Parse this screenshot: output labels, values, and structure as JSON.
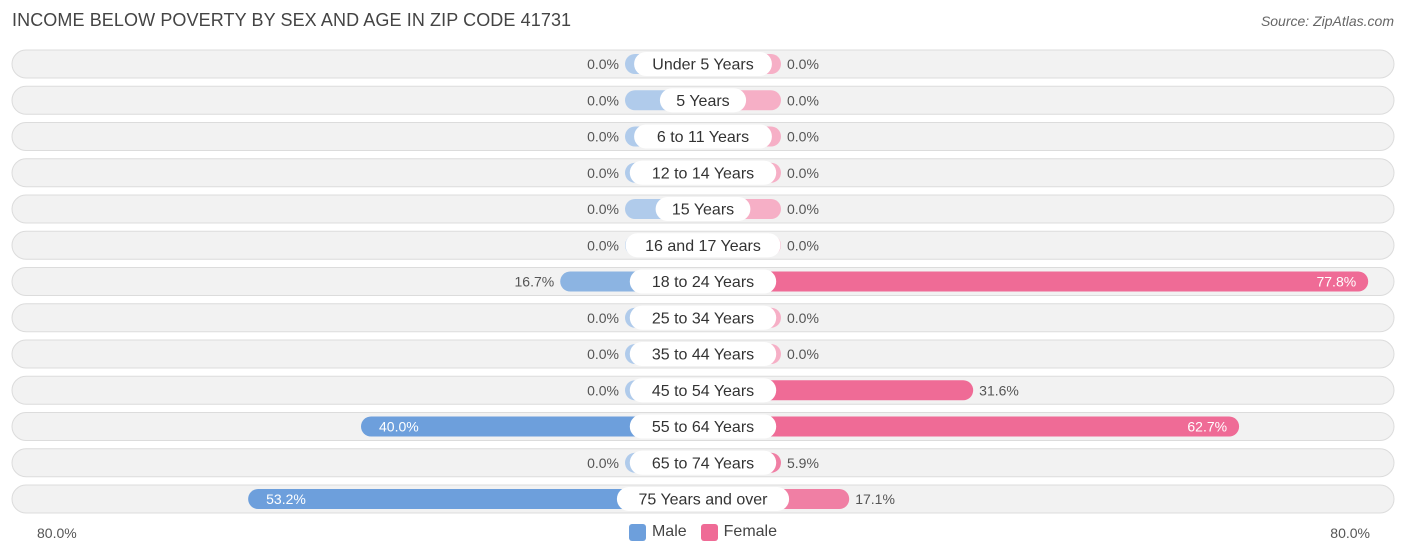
{
  "header": {
    "title": "INCOME BELOW POVERTY BY SEX AND AGE IN ZIP CODE 41731",
    "source": "Source: ZipAtlas.com"
  },
  "axis": {
    "left_label": "80.0%",
    "right_label": "80.0%"
  },
  "legend": {
    "male_label": "Male",
    "female_label": "Female"
  },
  "colors": {
    "male": "#8cb4e2",
    "male_strong": "#6d9fdc",
    "male_light": "#b0cbeb",
    "female": "#f07fa4",
    "female_strong": "#ef6b96",
    "female_light": "#f6afc6",
    "row_bg": "#f2f2f2",
    "row_border": "#dcdcdc"
  },
  "chart_data": {
    "type": "bar",
    "orientation": "horizontal-diverging",
    "xlim": [
      -80,
      80
    ],
    "categories": [
      "Under 5 Years",
      "5 Years",
      "6 to 11 Years",
      "12 to 14 Years",
      "15 Years",
      "16 and 17 Years",
      "18 to 24 Years",
      "25 to 34 Years",
      "35 to 44 Years",
      "45 to 54 Years",
      "55 to 64 Years",
      "65 to 74 Years",
      "75 Years and over"
    ],
    "series": [
      {
        "name": "Male",
        "values": [
          0.0,
          0.0,
          0.0,
          0.0,
          0.0,
          0.0,
          16.7,
          0.0,
          0.0,
          0.0,
          40.0,
          0.0,
          53.2
        ],
        "labels": [
          "0.0%",
          "0.0%",
          "0.0%",
          "0.0%",
          "0.0%",
          "0.0%",
          "16.7%",
          "0.0%",
          "0.0%",
          "0.0%",
          "40.0%",
          "0.0%",
          "53.2%"
        ]
      },
      {
        "name": "Female",
        "values": [
          0.0,
          0.0,
          0.0,
          0.0,
          0.0,
          0.0,
          77.8,
          0.0,
          0.0,
          31.6,
          62.7,
          5.9,
          17.1
        ],
        "labels": [
          "0.0%",
          "0.0%",
          "0.0%",
          "0.0%",
          "0.0%",
          "0.0%",
          "77.8%",
          "0.0%",
          "0.0%",
          "31.6%",
          "62.7%",
          "5.9%",
          "17.1%"
        ]
      }
    ],
    "legend_position": "bottom-center",
    "grid": false
  }
}
